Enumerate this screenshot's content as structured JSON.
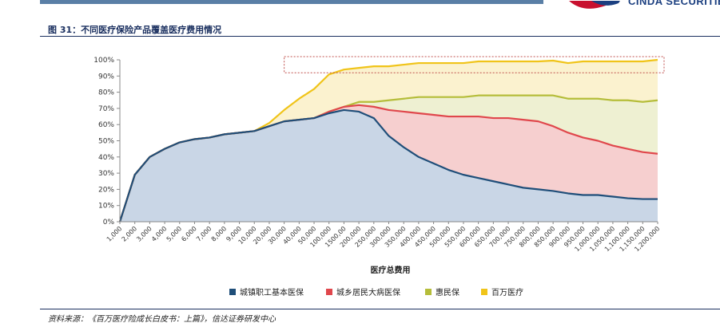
{
  "header": {
    "logo_text": "CINDA SECURITIES"
  },
  "title": "图 31：不同医疗保险产品覆盖医疗费用情况",
  "source": "资料来源：《百万医疗险成长白皮书：上篇》，信达证券研发中心",
  "colors": {
    "top_bar": "#5a7fa6",
    "logo_red": "#c8102e",
    "logo_blue": "#1b3f80",
    "title_navy": "#1b3060",
    "highlight_box": "#c0504d"
  },
  "chart_data": {
    "type": "area",
    "xlabel": "医疗总费用",
    "ylabel": "",
    "ylim": [
      0,
      100
    ],
    "yticks": [
      "0%",
      "10%",
      "20%",
      "30%",
      "40%",
      "50%",
      "60%",
      "70%",
      "80%",
      "90%",
      "100%"
    ],
    "grid": false,
    "legend_position": "bottom",
    "x": [
      "1,000",
      "2,000",
      "3,000",
      "4,000",
      "5,000",
      "6,000",
      "7,000",
      "8,000",
      "9,000",
      "10,000",
      "20,000",
      "30,000",
      "40,000",
      "50,000",
      "100,000",
      "1500,00",
      "200,000",
      "250,000",
      "300,000",
      "350,000",
      "400,000",
      "450,000",
      "500,000",
      "550,000",
      "600,000",
      "650,000",
      "700,000",
      "750,000",
      "800,000",
      "850,000",
      "900,000",
      "950,000",
      "1,000,000",
      "1,050,000",
      "1,100,000",
      "1,150,000",
      "1,200,000"
    ],
    "series": [
      {
        "name": "城镇职工基本医保",
        "color": "#1f4e79",
        "fill": "#c9d6e6",
        "values": [
          0,
          29,
          40,
          45,
          49,
          51,
          52,
          54,
          55,
          56,
          59,
          62,
          63,
          64,
          67,
          69,
          68,
          64,
          53,
          46,
          40,
          36,
          32,
          29,
          27,
          25,
          23,
          21,
          20,
          19,
          17.5,
          16.5,
          16.5,
          15.5,
          14.5,
          14,
          14
        ]
      },
      {
        "name": "城乡居民大病医保",
        "color": "#e0474c",
        "fill": "#f6cfcf",
        "values": [
          0,
          29,
          40,
          45,
          49,
          51,
          52,
          54,
          55,
          56,
          59,
          62,
          63,
          64,
          68,
          71,
          72,
          71,
          69,
          68,
          67,
          66,
          65,
          65,
          65,
          64,
          64,
          63,
          62,
          59,
          55,
          52,
          50,
          47,
          45,
          43,
          42
        ]
      },
      {
        "name": "惠民保",
        "color": "#b5bd3a",
        "fill": "#eef0d2",
        "values": [
          0,
          29,
          40,
          45,
          49,
          51,
          52,
          54,
          55,
          56,
          59,
          62,
          63,
          64,
          68,
          71,
          74,
          74,
          75,
          76,
          77,
          77,
          77,
          77,
          78,
          78,
          78,
          78,
          78,
          78,
          76,
          76,
          76,
          75,
          75,
          74,
          75
        ]
      },
      {
        "name": "百万医疗",
        "color": "#f0c419",
        "fill": "#fbf2cf",
        "values": [
          0,
          29,
          40,
          45,
          49,
          51,
          52,
          54,
          55,
          56,
          61,
          69,
          76,
          82,
          91,
          94,
          95,
          96,
          96,
          97,
          98,
          98,
          98,
          98,
          99,
          99,
          99,
          99,
          99,
          99.5,
          98,
          99,
          99,
          99,
          99,
          99,
          100
        ]
      }
    ]
  }
}
